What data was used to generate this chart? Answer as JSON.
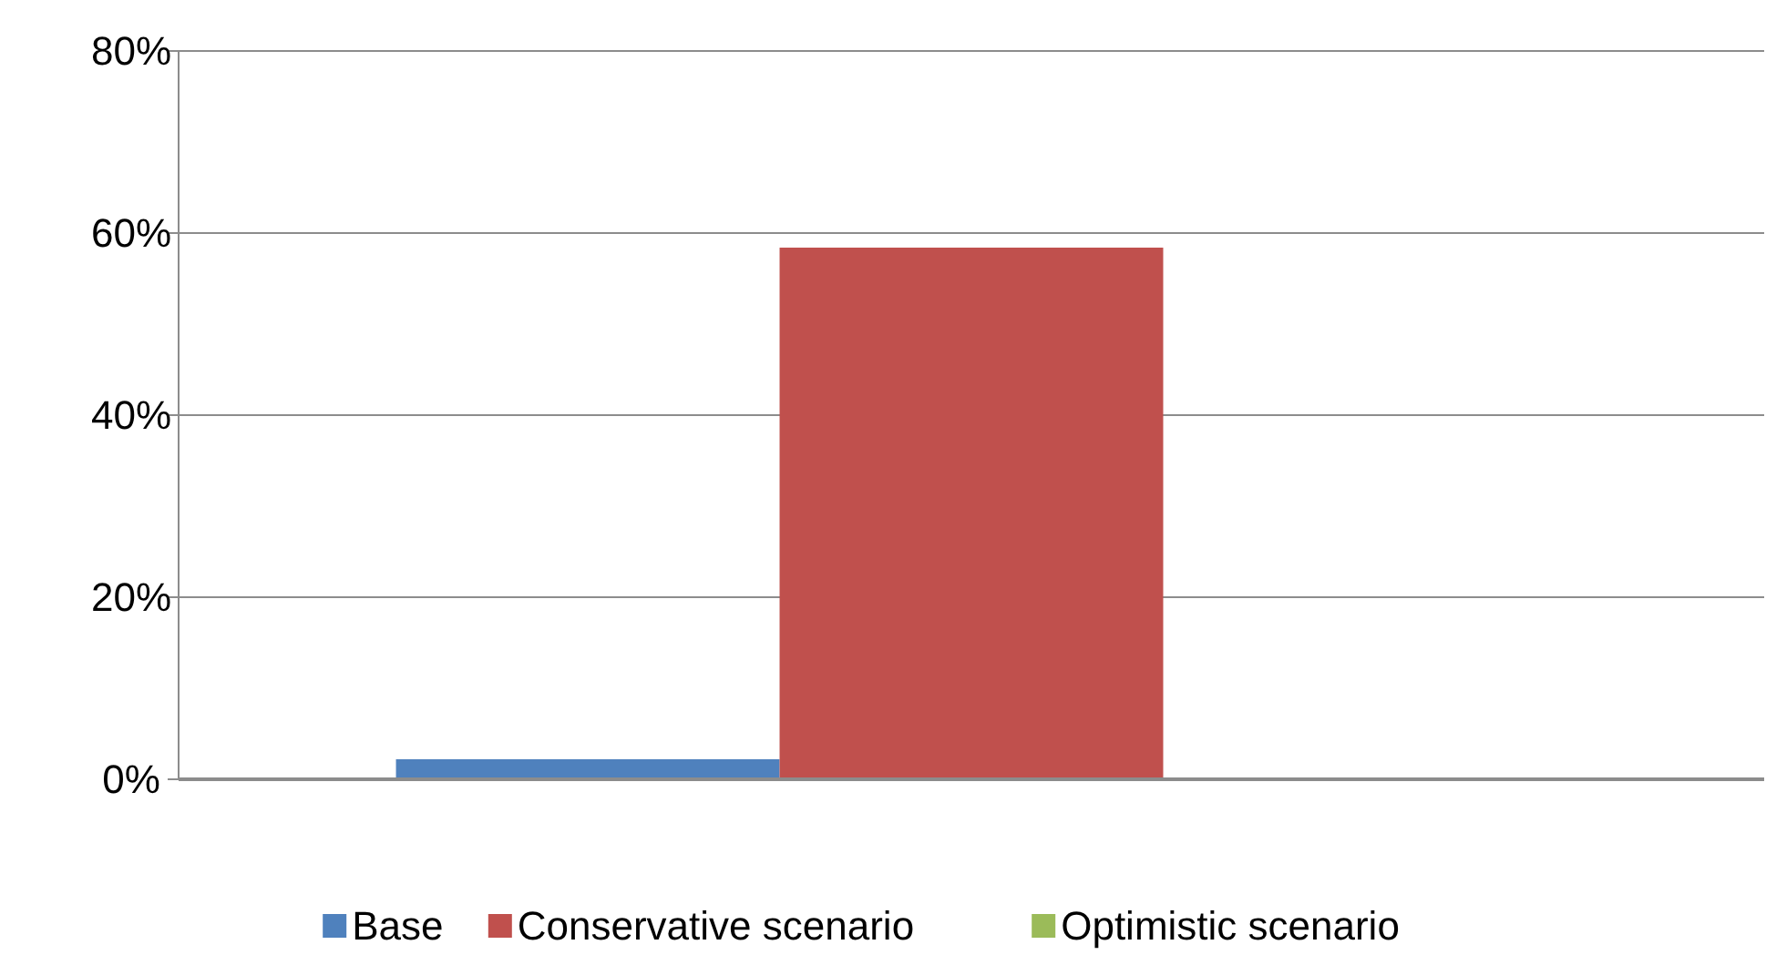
{
  "chart_data": {
    "type": "bar",
    "categories": [
      null
    ],
    "series": [
      {
        "name": "Base",
        "color": "#4f81bd",
        "values": [
          2.2
        ]
      },
      {
        "name": "Conservative scenario",
        "color": "#c0504d",
        "values": [
          58.4
        ]
      },
      {
        "name": "Optimistic scenario",
        "color": "#9bbb59",
        "values": [
          0
        ]
      }
    ],
    "ylim": [
      0,
      80
    ],
    "yticks": [
      {
        "value": 0,
        "label": "0%"
      },
      {
        "value": 20,
        "label": "20%"
      },
      {
        "value": 40,
        "label": "40%"
      },
      {
        "value": 60,
        "label": "60%"
      },
      {
        "value": 80,
        "label": "80%"
      }
    ],
    "grid": "y",
    "legend": "bottom"
  }
}
